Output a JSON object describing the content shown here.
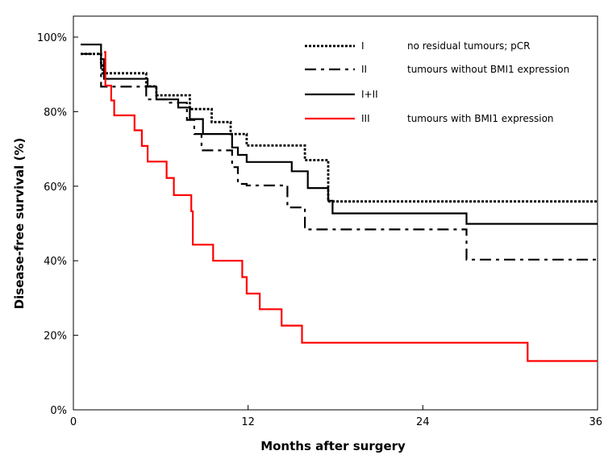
{
  "chart_data": {
    "type": "line",
    "step": true,
    "xlabel": "Months after surgery",
    "ylabel": "Disease-free survival (%)",
    "xlim": [
      0,
      36
    ],
    "ylim": [
      0,
      100
    ],
    "xticks": [
      0,
      12,
      24,
      36
    ],
    "xtick_labels": [
      "0",
      "12",
      "24",
      "36"
    ],
    "yticks": [
      0,
      20,
      40,
      60,
      80,
      100
    ],
    "ytick_labels": [
      "0%",
      "20%",
      "40%",
      "60%",
      "80%",
      "100%"
    ],
    "grid": false,
    "legend_position": "top-right",
    "series": [
      {
        "group": "I",
        "name": "no residual tumours; pCR",
        "color": "#000000",
        "style": "dotted",
        "points": [
          [
            0.5,
            95.5
          ],
          [
            1.9,
            95.5
          ],
          [
            1.9,
            92.7
          ],
          [
            2.0,
            92.7
          ],
          [
            2.0,
            90.3
          ],
          [
            5.0,
            90.3
          ],
          [
            5.0,
            86.8
          ],
          [
            5.7,
            86.8
          ],
          [
            5.7,
            84.4
          ],
          [
            8.0,
            84.4
          ],
          [
            8.0,
            80.7
          ],
          [
            9.5,
            80.7
          ],
          [
            9.5,
            77.2
          ],
          [
            10.8,
            77.2
          ],
          [
            10.8,
            74.0
          ],
          [
            11.9,
            74.0
          ],
          [
            11.9,
            70.9
          ],
          [
            15.9,
            70.9
          ],
          [
            15.9,
            67.0
          ],
          [
            17.5,
            67.0
          ],
          [
            17.5,
            55.9
          ],
          [
            36,
            55.9
          ]
        ]
      },
      {
        "group": "II",
        "name": "tumours without BMI1 expression",
        "color": "#000000",
        "style": "dash-dot",
        "points": [
          [
            0.5,
            95.5
          ],
          [
            1.9,
            95.5
          ],
          [
            1.9,
            86.7
          ],
          [
            5.0,
            86.7
          ],
          [
            5.0,
            83.3
          ],
          [
            6.4,
            83.3
          ],
          [
            6.4,
            82.4
          ],
          [
            7.8,
            82.4
          ],
          [
            7.8,
            77.8
          ],
          [
            8.3,
            77.8
          ],
          [
            8.3,
            74.0
          ],
          [
            8.8,
            74.0
          ],
          [
            8.8,
            69.6
          ],
          [
            10.9,
            69.6
          ],
          [
            10.9,
            65.1
          ],
          [
            11.3,
            65.1
          ],
          [
            11.3,
            60.6
          ],
          [
            11.9,
            60.6
          ],
          [
            11.9,
            60.2
          ],
          [
            14.7,
            60.2
          ],
          [
            14.7,
            54.3
          ],
          [
            15.9,
            54.3
          ],
          [
            15.9,
            48.4
          ],
          [
            27.0,
            48.4
          ],
          [
            27.0,
            40.3
          ],
          [
            36,
            40.3
          ]
        ]
      },
      {
        "group": "I+II",
        "name": "",
        "color": "#000000",
        "style": "solid",
        "points": [
          [
            0.5,
            98.0
          ],
          [
            1.9,
            98.0
          ],
          [
            1.9,
            94.1
          ],
          [
            2.1,
            94.1
          ],
          [
            2.1,
            88.8
          ],
          [
            5.1,
            88.8
          ],
          [
            5.1,
            86.7
          ],
          [
            5.7,
            86.7
          ],
          [
            5.7,
            83.3
          ],
          [
            7.2,
            83.3
          ],
          [
            7.2,
            81.1
          ],
          [
            8.0,
            81.1
          ],
          [
            8.0,
            78.0
          ],
          [
            8.9,
            78.0
          ],
          [
            8.9,
            74.0
          ],
          [
            10.9,
            74.0
          ],
          [
            10.9,
            70.4
          ],
          [
            11.3,
            70.4
          ],
          [
            11.3,
            68.4
          ],
          [
            11.9,
            68.4
          ],
          [
            11.9,
            66.5
          ],
          [
            15.0,
            66.5
          ],
          [
            15.0,
            64.0
          ],
          [
            16.1,
            64.0
          ],
          [
            16.1,
            59.5
          ],
          [
            17.5,
            59.5
          ],
          [
            17.5,
            56.1
          ],
          [
            17.8,
            56.1
          ],
          [
            17.8,
            52.7
          ],
          [
            27.0,
            52.7
          ],
          [
            27.0,
            49.9
          ],
          [
            36,
            49.9
          ]
        ]
      },
      {
        "group": "III",
        "name": "tumours with BMI1 expression",
        "color": "#ff0000",
        "style": "solid",
        "points": [
          [
            2.1,
            96.0
          ],
          [
            2.2,
            96.0
          ],
          [
            2.2,
            87.0
          ],
          [
            2.6,
            87.0
          ],
          [
            2.6,
            83.0
          ],
          [
            2.8,
            83.0
          ],
          [
            2.8,
            79.0
          ],
          [
            4.2,
            79.0
          ],
          [
            4.2,
            75.0
          ],
          [
            4.7,
            75.0
          ],
          [
            4.7,
            70.8
          ],
          [
            5.1,
            70.8
          ],
          [
            5.1,
            66.6
          ],
          [
            6.4,
            66.6
          ],
          [
            6.4,
            62.2
          ],
          [
            6.9,
            62.2
          ],
          [
            6.9,
            57.6
          ],
          [
            8.1,
            57.6
          ],
          [
            8.1,
            53.3
          ],
          [
            8.2,
            53.3
          ],
          [
            8.2,
            44.3
          ],
          [
            9.6,
            44.3
          ],
          [
            9.6,
            40.0
          ],
          [
            11.6,
            40.0
          ],
          [
            11.6,
            35.6
          ],
          [
            11.9,
            35.6
          ],
          [
            11.9,
            31.2
          ],
          [
            12.8,
            31.2
          ],
          [
            12.8,
            27.0
          ],
          [
            14.3,
            27.0
          ],
          [
            14.3,
            22.6
          ],
          [
            15.7,
            22.6
          ],
          [
            15.7,
            18.0
          ],
          [
            31.2,
            18.0
          ],
          [
            31.2,
            13.1
          ],
          [
            36,
            13.1
          ]
        ]
      }
    ]
  }
}
